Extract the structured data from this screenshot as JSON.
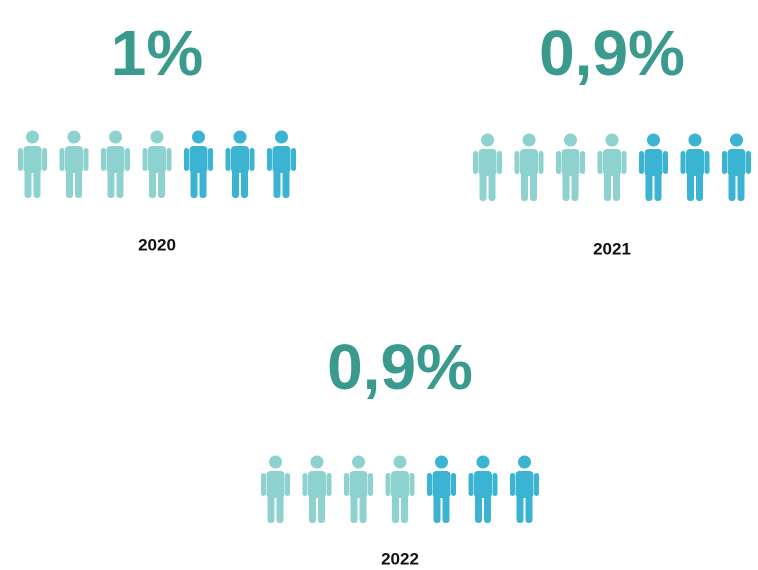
{
  "panels": [
    {
      "value": "1%",
      "year": "2020"
    },
    {
      "value": "0,9%",
      "year": "2021"
    },
    {
      "value": "0,9%",
      "year": "2022"
    }
  ]
}
